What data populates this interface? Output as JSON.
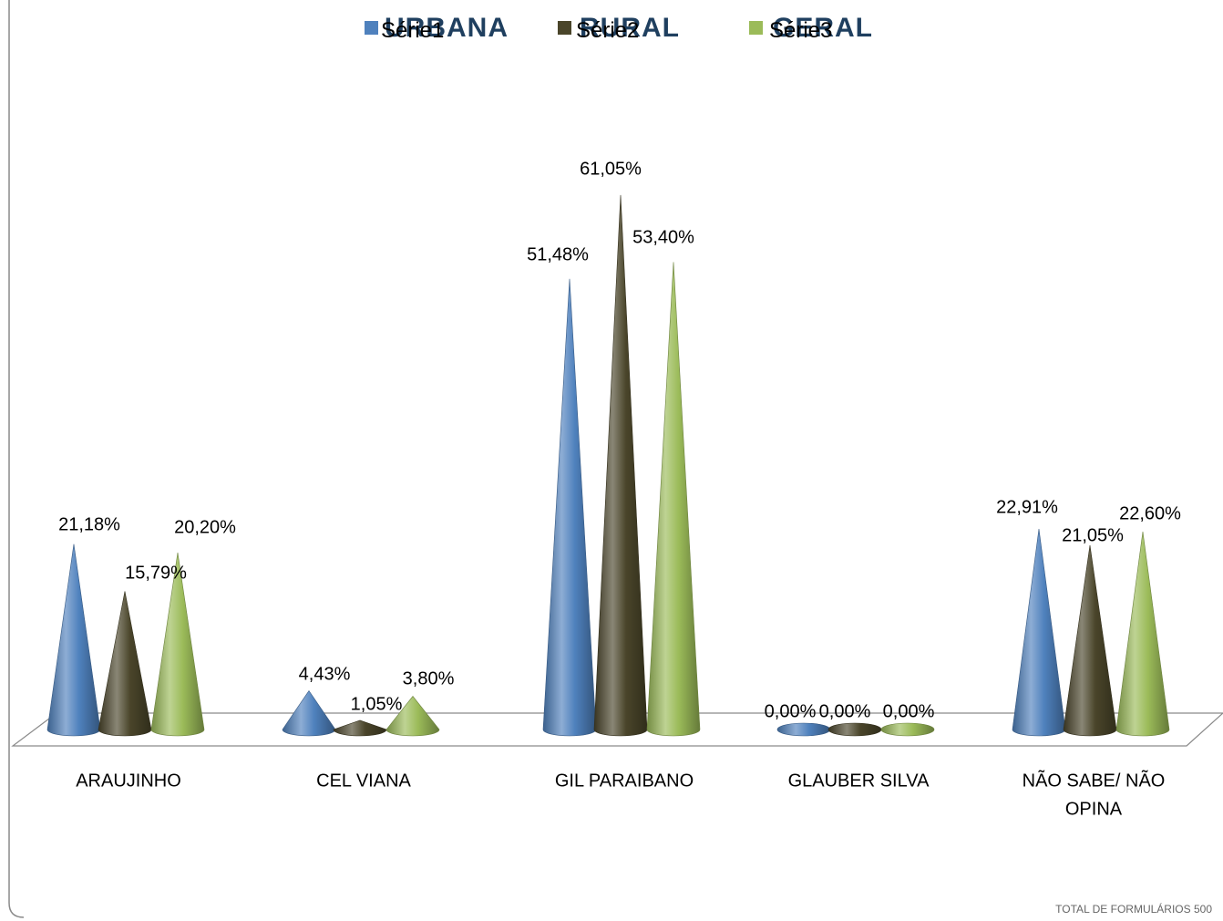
{
  "chart_data": {
    "type": "bar",
    "categories": [
      "ARAUJINHO",
      "CEL VIANA",
      "GIL PARAIBANO",
      "GLAUBER SILVA",
      "NÃO SABE/ NÃO OPINA"
    ],
    "series": [
      {
        "name": "URBANA",
        "legend_overlay": "Série1",
        "color": "#4f81bd",
        "values": [
          21.18,
          4.43,
          51.48,
          0.0,
          22.91
        ],
        "labels": [
          "21,18%",
          "4,43%",
          "51,48%",
          "0,00%",
          "22,91%"
        ]
      },
      {
        "name": "RURAL",
        "legend_overlay": "Série2",
        "color": "#4a452a",
        "values": [
          15.79,
          1.05,
          61.05,
          0.0,
          21.05
        ],
        "labels": [
          "15,79%",
          "1,05%",
          "61,05%",
          "0,00%",
          "21,05%"
        ]
      },
      {
        "name": "GERAL",
        "legend_overlay": "Série3",
        "color": "#9bbb59",
        "values": [
          20.2,
          3.8,
          53.4,
          0.0,
          22.6
        ],
        "labels": [
          "20,20%",
          "3,80%",
          "53,40%",
          "0,00%",
          "22,60%"
        ]
      }
    ],
    "shape": "cone-3d",
    "legend_position": "top",
    "grid": false
  },
  "footer": "TOTAL DE FORMULÁRIOS 500"
}
